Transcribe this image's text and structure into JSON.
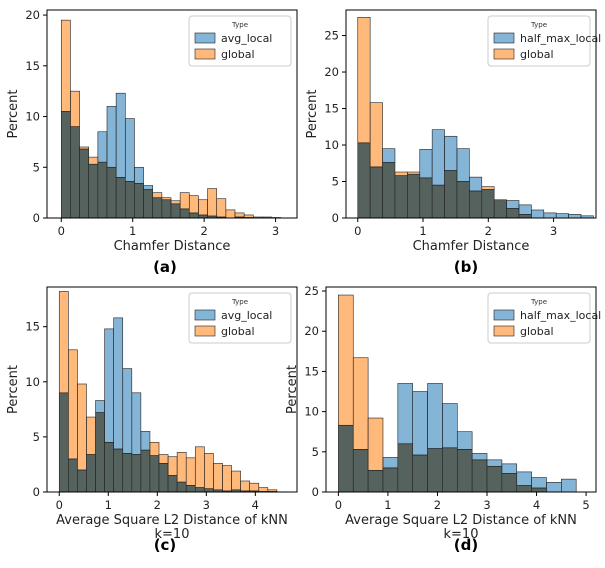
{
  "colors": {
    "blue": "#1f77b4",
    "orange": "#ff7f0e",
    "overlap": "#56625d"
  },
  "chart_data": [
    {
      "type": "bar",
      "panel_label": "(a)",
      "xlabel": "Chamfer Distance",
      "xlabel2": "",
      "ylabel": "Percent",
      "xlim": [
        -0.2,
        3.3
      ],
      "ylim": [
        0,
        20.5
      ],
      "xticks": [
        0,
        1,
        2,
        3
      ],
      "yticks": [
        0,
        5,
        10,
        15,
        20
      ],
      "legend": {
        "title": "Type",
        "placement": "upper right"
      },
      "bin_start": 0.0,
      "bin_width": 0.128,
      "series": [
        {
          "name": "avg_local",
          "color": "#1f77b4",
          "values": [
            10.5,
            9.0,
            6.8,
            5.3,
            8.5,
            11.0,
            12.3,
            9.8,
            5.0,
            3.2,
            2.0,
            1.8,
            1.4,
            0.9,
            0.5,
            0.3,
            0.2,
            0.1,
            0,
            0.1,
            0.05,
            0.1,
            0.1,
            0.05
          ]
        },
        {
          "name": "global",
          "color": "#ff7f0e",
          "values": [
            19.5,
            12.5,
            7.0,
            6.0,
            5.5,
            5.0,
            4.0,
            3.6,
            3.4,
            2.8,
            2.5,
            2.0,
            1.7,
            2.5,
            2.2,
            1.8,
            2.9,
            1.9,
            0.8,
            0.5,
            0.3,
            0,
            0,
            0
          ]
        }
      ]
    },
    {
      "type": "bar",
      "panel_label": "(b)",
      "xlabel": "Chamfer Distance",
      "xlabel2": "",
      "ylabel": "Percent",
      "xlim": [
        -0.18,
        3.65
      ],
      "ylim": [
        0,
        28.5
      ],
      "xticks": [
        0,
        1,
        2,
        3
      ],
      "yticks": [
        0,
        5,
        10,
        15,
        20,
        25
      ],
      "legend": {
        "title": "Type",
        "placement": "upper right"
      },
      "bin_start": 0.0,
      "bin_width": 0.19,
      "series": [
        {
          "name": "half_max_local",
          "color": "#1f77b4",
          "values": [
            10.3,
            7.0,
            9.5,
            5.8,
            6.0,
            9.4,
            12.1,
            11.2,
            9.5,
            5.6,
            3.9,
            2.5,
            2.4,
            1.8,
            1.1,
            0.7,
            0.6,
            0.5,
            0.3
          ]
        },
        {
          "name": "global",
          "color": "#ff7f0e",
          "values": [
            27.5,
            15.8,
            7.6,
            6.3,
            6.3,
            5.5,
            4.5,
            6.5,
            5.0,
            3.7,
            4.3,
            2.5,
            1.3,
            0.5,
            0,
            0,
            0,
            0,
            0
          ]
        }
      ]
    },
    {
      "type": "bar",
      "panel_label": "(c)",
      "xlabel": "Average Square L2 Distance of kNN",
      "xlabel2": "k=10",
      "ylabel": "Percent",
      "xlim": [
        -0.25,
        4.85
      ],
      "ylim": [
        0,
        18.6
      ],
      "xticks": [
        0,
        1,
        2,
        3,
        4
      ],
      "yticks": [
        0,
        5,
        10,
        15
      ],
      "legend": {
        "title": "Type",
        "placement": "upper right"
      },
      "bin_start": 0.0,
      "bin_width": 0.185,
      "series": [
        {
          "name": "avg_local",
          "color": "#1f77b4",
          "values": [
            9.0,
            3.0,
            2.0,
            3.4,
            8.3,
            14.8,
            15.8,
            11.2,
            9.0,
            5.5,
            3.3,
            2.6,
            1.5,
            0.9,
            0.6,
            0.4,
            0.3,
            0.2,
            0.1,
            0.2,
            0.1,
            0.1,
            0.05,
            0.05,
            0.02
          ]
        },
        {
          "name": "global",
          "color": "#ff7f0e",
          "values": [
            18.2,
            12.9,
            9.8,
            6.8,
            7.2,
            4.5,
            3.9,
            3.5,
            3.4,
            3.8,
            4.5,
            3.4,
            3.2,
            3.6,
            3.1,
            4.1,
            3.5,
            2.6,
            2.4,
            1.9,
            1.0,
            0.8,
            0.4,
            0.2,
            0
          ]
        }
      ]
    },
    {
      "type": "bar",
      "panel_label": "(d)",
      "xlabel": "Average Square L2 Distance of kNN",
      "xlabel2": "k=10",
      "ylabel": "Percent",
      "xlim": [
        -0.25,
        5.2
      ],
      "ylim": [
        0,
        25.5
      ],
      "xticks": [
        0,
        1,
        2,
        3,
        4,
        5
      ],
      "yticks": [
        0,
        5,
        10,
        15,
        20,
        25
      ],
      "legend": {
        "title": "Type",
        "placement": "upper right"
      },
      "bin_start": 0.0,
      "bin_width": 0.3,
      "series": [
        {
          "name": "half_max_local",
          "color": "#1f77b4",
          "values": [
            8.3,
            5.3,
            2.7,
            4.3,
            13.5,
            12.5,
            13.5,
            11.0,
            7.5,
            4.8,
            4.0,
            3.5,
            2.5,
            1.8,
            1.2,
            1.6
          ]
        },
        {
          "name": "global",
          "color": "#ff7f0e",
          "values": [
            24.5,
            16.7,
            9.2,
            3.0,
            6.0,
            4.6,
            5.4,
            5.5,
            5.3,
            4.0,
            3.2,
            2.3,
            0.8,
            0.5,
            0,
            0
          ]
        }
      ]
    }
  ]
}
